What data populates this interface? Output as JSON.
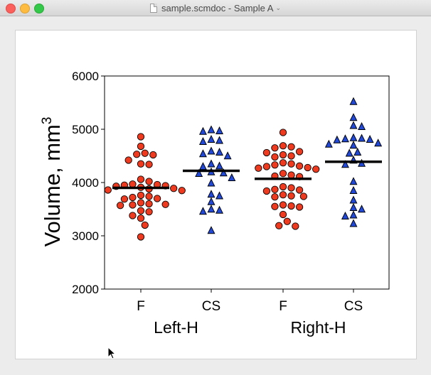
{
  "window": {
    "title": "sample.scmdoc - Sample A",
    "title_chevron": "⌄",
    "icons": {
      "close": "close-icon",
      "minimize": "minimize-icon",
      "zoom": "zoom-icon",
      "document": "document-icon",
      "cursor": "cursor-icon"
    }
  },
  "chart_data": {
    "type": "scatter",
    "ylabel": "Volume, mm",
    "ylabel_superscript": "3",
    "ylim": [
      2000,
      6000
    ],
    "yticks": [
      "2000",
      "3000",
      "4000",
      "5000",
      "6000"
    ],
    "groups": [
      {
        "label": "Left-H",
        "categories": [
          "F",
          "CS"
        ]
      },
      {
        "label": "Right-H",
        "categories": [
          "F",
          "CS"
        ]
      }
    ],
    "colors": {
      "F": "#ee3a1f",
      "CS": "#2148d6"
    },
    "series": [
      {
        "category": "F",
        "group": "Left-H",
        "marker": "circle",
        "mean": 3900,
        "values": [
          4860,
          4680,
          4550,
          4530,
          4520,
          4420,
          4350,
          4340,
          4060,
          4020,
          3970,
          3960,
          3950,
          3940,
          3930,
          3910,
          3890,
          3880,
          3860,
          3850,
          3760,
          3740,
          3720,
          3700,
          3690,
          3620,
          3600,
          3590,
          3580,
          3570,
          3470,
          3450,
          3380,
          3330,
          3200,
          2980
        ]
      },
      {
        "category": "CS",
        "group": "Left-H",
        "marker": "triangle",
        "mean": 4220,
        "values": [
          4990,
          4970,
          4960,
          4810,
          4790,
          4770,
          4590,
          4570,
          4540,
          4500,
          4350,
          4310,
          4300,
          4200,
          4180,
          4170,
          4090,
          3990,
          3780,
          3750,
          3640,
          3500,
          3480,
          3460,
          3100
        ]
      },
      {
        "category": "F",
        "group": "Right-H",
        "marker": "circle",
        "mean": 4070,
        "values": [
          4940,
          4690,
          4670,
          4650,
          4580,
          4560,
          4520,
          4500,
          4480,
          4370,
          4350,
          4330,
          4310,
          4300,
          4280,
          4270,
          4250,
          4170,
          4140,
          4120,
          4110,
          3920,
          3900,
          3870,
          3860,
          3840,
          3770,
          3750,
          3740,
          3730,
          3580,
          3560,
          3550,
          3540,
          3400,
          3270,
          3190,
          3180
        ]
      },
      {
        "category": "CS",
        "group": "Right-H",
        "marker": "triangle",
        "mean": 4390,
        "values": [
          5520,
          5220,
          5070,
          5050,
          4840,
          4830,
          4820,
          4810,
          4800,
          4740,
          4720,
          4700,
          4570,
          4550,
          4420,
          4360,
          4340,
          4020,
          3850,
          3670,
          3530,
          3500,
          3390,
          3370,
          3230
        ]
      }
    ]
  }
}
